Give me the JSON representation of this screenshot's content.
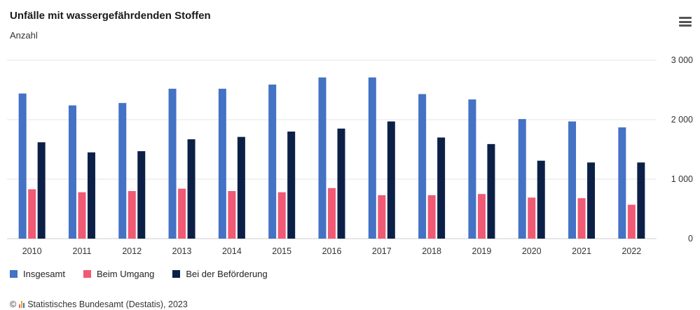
{
  "chart_data": {
    "type": "bar",
    "title": "Unfälle mit wassergefährdenden Stoffen",
    "subtitle": "Anzahl",
    "categories": [
      "2010",
      "2011",
      "2012",
      "2013",
      "2014",
      "2015",
      "2016",
      "2017",
      "2018",
      "2019",
      "2020",
      "2021",
      "2022"
    ],
    "series": [
      {
        "name": "Insgesamt",
        "color": "#4472c4",
        "values": [
          2440,
          2240,
          2280,
          2520,
          2520,
          2590,
          2710,
          2710,
          2430,
          2340,
          2010,
          1970,
          1870
        ]
      },
      {
        "name": "Beim Umgang",
        "color": "#f05a74",
        "values": [
          830,
          780,
          800,
          840,
          800,
          780,
          850,
          730,
          730,
          750,
          690,
          680,
          570
        ]
      },
      {
        "name": "Bei der Beförderung",
        "color": "#0c2047",
        "values": [
          1620,
          1450,
          1470,
          1670,
          1710,
          1800,
          1850,
          1970,
          1700,
          1590,
          1310,
          1280,
          1280
        ]
      }
    ],
    "y_ticks": [
      "0",
      "1 000",
      "2 000",
      "3 000"
    ],
    "ylim": [
      0,
      3000
    ],
    "y_axis_side": "right",
    "grid": true,
    "legend_position": "bottom-left"
  },
  "footer": {
    "source": "Statistisches Bundesamt (Destatis), 2023",
    "copyright": "©",
    "logo_colors": [
      "#f05a74",
      "#f2a900",
      "#4472c4"
    ]
  },
  "menu": {
    "icon": "hamburger-menu-icon"
  }
}
